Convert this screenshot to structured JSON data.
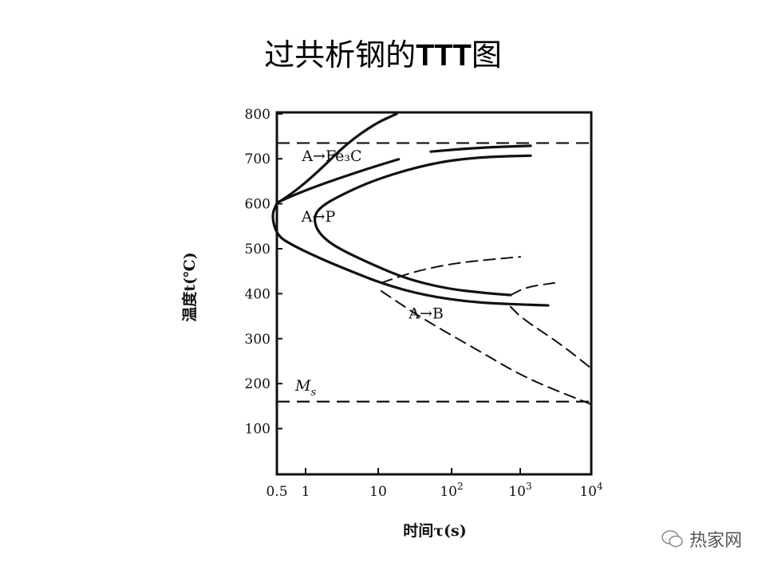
{
  "title_cn": "过共析钢的",
  "title_latin": "TTT",
  "title_end": "图",
  "watermark": "热家网",
  "chart_data": {
    "type": "line",
    "title": "过共析钢的TTT图",
    "xlabel": "时间τ(s)",
    "ylabel": "温度t(℃)",
    "xscale": "log",
    "xlim": [
      0.5,
      10000
    ],
    "ylim": [
      0,
      800
    ],
    "xticks": [
      {
        "v": 0.5,
        "label": "0.5"
      },
      {
        "v": 1,
        "label": "1"
      },
      {
        "v": 10,
        "label": "10"
      },
      {
        "v": 100,
        "label": "10",
        "sup": "2"
      },
      {
        "v": 1000,
        "label": "10",
        "sup": "3"
      },
      {
        "v": 10000,
        "label": "10",
        "sup": "4"
      }
    ],
    "yticks": [
      100,
      200,
      300,
      400,
      500,
      600,
      700,
      800
    ],
    "reference_lines": [
      {
        "name": "A1",
        "T": 735,
        "style": "dashed"
      },
      {
        "name": "Ms",
        "T": 160,
        "style": "dashed",
        "label": "M",
        "sub": "s"
      }
    ],
    "annotations": [
      {
        "text": "A→Fe₃C",
        "t": 2.3,
        "T": 695
      },
      {
        "text": "A→P",
        "t": 1.5,
        "T": 560
      },
      {
        "text": "A→B",
        "t": 45,
        "T": 345
      }
    ],
    "series": [
      {
        "name": "Fe3C-start",
        "style": "solid",
        "points": [
          [
            17.8,
            800
          ],
          [
            9,
            778
          ],
          [
            3.7,
            734
          ],
          [
            1.5,
            672
          ],
          [
            0.78,
            628
          ],
          [
            0.5,
            601
          ]
        ]
      },
      {
        "name": "transformation-start",
        "style": "solid",
        "points": [
          [
            0.5,
            601
          ],
          [
            0.44,
            574
          ],
          [
            0.5,
            530
          ],
          [
            0.71,
            509
          ],
          [
            1.5,
            480
          ],
          [
            4.2,
            450
          ],
          [
            11.6,
            422
          ],
          [
            40.5,
            397
          ],
          [
            190,
            381
          ],
          [
            950,
            376
          ],
          [
            2470,
            374
          ]
        ]
      },
      {
        "name": "Fe3C-line",
        "style": "solid",
        "points": [
          [
            0.53,
            605
          ],
          [
            0.94,
            628
          ],
          [
            2.55,
            654
          ],
          [
            9,
            683
          ],
          [
            19,
            699
          ]
        ]
      },
      {
        "name": "Fe3C-arrow-line",
        "style": "solid",
        "points": [
          [
            52,
            716
          ],
          [
            250,
            725
          ],
          [
            1400,
            729
          ]
        ]
      },
      {
        "name": "transformation-finish",
        "style": "solid",
        "points": [
          [
            1400,
            707
          ],
          [
            250,
            704
          ],
          [
            52,
            690
          ],
          [
            9,
            654
          ],
          [
            2.55,
            613
          ],
          [
            1.5,
            589
          ],
          [
            1.29,
            566
          ],
          [
            1.5,
            535
          ],
          [
            2.55,
            504
          ],
          [
            8.8,
            463
          ],
          [
            24.5,
            433
          ],
          [
            86,
            411
          ],
          [
            326,
            401
          ],
          [
            724,
            397
          ]
        ]
      },
      {
        "name": "bainite-upper",
        "style": "dashed",
        "points": [
          [
            11,
            424
          ],
          [
            32,
            450
          ],
          [
            112,
            468
          ],
          [
            427,
            477
          ],
          [
            1000,
            482
          ]
        ]
      },
      {
        "name": "bainite-start-lower",
        "style": "dashed",
        "points": [
          [
            11,
            406
          ],
          [
            40.5,
            344
          ],
          [
            250,
            273
          ],
          [
            1230,
            211
          ],
          [
            10000,
            154
          ]
        ]
      },
      {
        "name": "bainite-right-upper",
        "style": "dashed",
        "points": [
          [
            724,
            397
          ],
          [
            1230,
            415
          ],
          [
            3040,
            424
          ]
        ]
      },
      {
        "name": "bainite-finish",
        "style": "dashed",
        "points": [
          [
            724,
            371
          ],
          [
            1080,
            344
          ],
          [
            3500,
            291
          ],
          [
            10000,
            234
          ]
        ]
      }
    ]
  }
}
